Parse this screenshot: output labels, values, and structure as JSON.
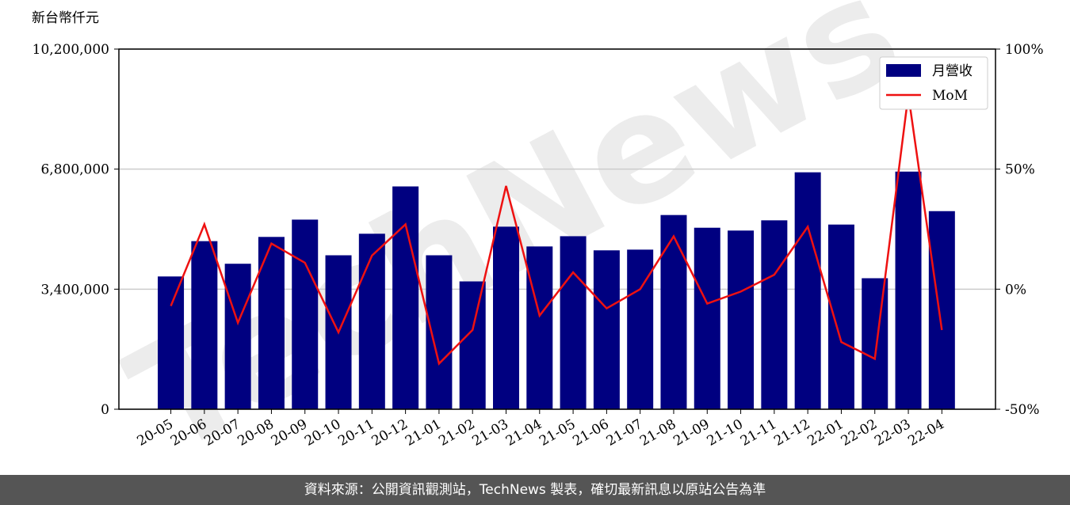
{
  "chart_data": {
    "type": "bar_line",
    "y_axis_label": "新台幣仟元",
    "watermark": "TechNews",
    "categories": [
      "20-05",
      "20-06",
      "20-07",
      "20-08",
      "20-09",
      "20-10",
      "20-11",
      "20-12",
      "21-01",
      "21-02",
      "21-03",
      "21-04",
      "21-05",
      "21-06",
      "21-07",
      "21-08",
      "21-09",
      "21-10",
      "21-11",
      "21-12",
      "22-01",
      "22-02",
      "22-03",
      "22-04"
    ],
    "series": [
      {
        "name": "月營收",
        "type": "bar",
        "color": "#000080",
        "values": [
          3760000,
          4760000,
          4120000,
          4880000,
          5370000,
          4360000,
          4970000,
          6310000,
          4360000,
          3620000,
          5170000,
          4610000,
          4900000,
          4500000,
          4520000,
          5500000,
          5140000,
          5060000,
          5350000,
          6710000,
          5230000,
          3710000,
          6730000,
          5610000
        ]
      },
      {
        "name": "MoM",
        "type": "line",
        "axis": "y2",
        "color": "#ee1111",
        "values": [
          -7,
          27,
          -14,
          19,
          11,
          -18,
          14,
          27,
          -31,
          -17,
          43,
          -11,
          7,
          -8,
          0,
          22,
          -6,
          -1,
          6,
          26,
          -22,
          -29,
          81,
          -17
        ]
      }
    ],
    "ylim": [
      0,
      10200000
    ],
    "yticks": [
      0,
      {
        "value": 3400000,
        "label": "3,400,000"
      },
      {
        "value": 6800000,
        "label": "6,800,000"
      },
      {
        "value": 10200000,
        "label": "10,200,000"
      }
    ],
    "y2lim": [
      -50,
      100
    ],
    "y2ticks": [
      {
        "value": -50,
        "label": "-50%"
      },
      {
        "value": 0,
        "label": "0%"
      },
      {
        "value": 50,
        "label": "50%"
      },
      {
        "value": 100,
        "label": "100%"
      }
    ],
    "grid": true,
    "legend": "upper right"
  },
  "footer": "資料來源：公開資訊觀測站，TechNews 製表，確切最新訊息以原站公告為準"
}
